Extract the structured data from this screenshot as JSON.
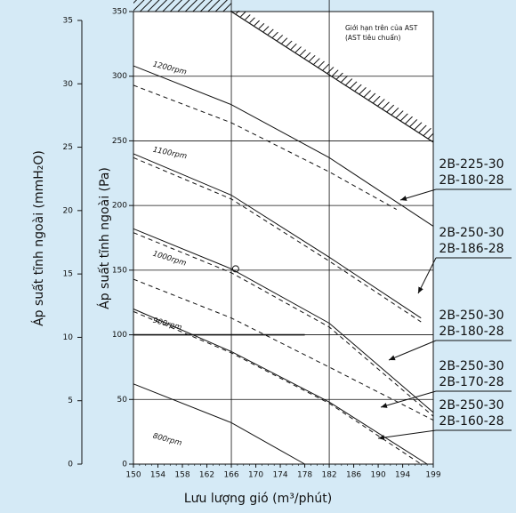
{
  "chart_data": {
    "type": "line",
    "xlabel": "Lưu lượng gió (m³/phút)",
    "ylabel": "Áp suất tĩnh ngoài (Pa)",
    "y2label": "Áp suất tĩnh ngoài (mmH₂O)",
    "xlim": [
      150,
      199
    ],
    "xticks": [
      150,
      154,
      158,
      162,
      166,
      170,
      174,
      178,
      182,
      186,
      190,
      194,
      199
    ],
    "ylim": [
      0,
      350
    ],
    "yticks": [
      0,
      50,
      100,
      150,
      200,
      250,
      300,
      350
    ],
    "y2lim": [
      0,
      35.7
    ],
    "y2ticks": [
      0,
      5,
      10,
      15,
      20,
      25,
      30,
      35
    ],
    "grid_x": [
      166,
      182
    ],
    "limit": {
      "label": [
        "Giới hạn trên của AST",
        "(AST tiêu chuẩn)"
      ],
      "x": [
        166,
        199
      ],
      "values": [
        350,
        249
      ]
    },
    "series": [
      {
        "name": "1200rpm",
        "dash": false,
        "x": [
          150,
          166,
          182,
          199
        ],
        "values": [
          308,
          278,
          237,
          184
        ]
      },
      {
        "dash": true,
        "x": [
          150,
          166,
          182,
          193
        ],
        "values": [
          293,
          264,
          226,
          197
        ]
      },
      {
        "name": "1100rpm",
        "dash": false,
        "x": [
          150,
          166,
          182,
          197
        ],
        "values": [
          240,
          208,
          160,
          113
        ]
      },
      {
        "dash": true,
        "x": [
          150,
          166,
          182,
          197
        ],
        "values": [
          237,
          205,
          157,
          110
        ]
      },
      {
        "name": "1000rpm",
        "dash": false,
        "x": [
          150,
          166,
          182,
          199
        ],
        "values": [
          182,
          151,
          109,
          40
        ]
      },
      {
        "dash": true,
        "x": [
          150,
          166,
          182,
          199
        ],
        "values": [
          179,
          148,
          106,
          37
        ]
      },
      {
        "dash": true,
        "x": [
          150,
          166,
          182,
          199
        ],
        "values": [
          143,
          113,
          75,
          34
        ]
      },
      {
        "name": "900rpm",
        "dash": false,
        "x": [
          150,
          166,
          182,
          198
        ],
        "values": [
          120,
          87,
          48,
          0
        ]
      },
      {
        "dash": true,
        "x": [
          150,
          166,
          182,
          197
        ],
        "values": [
          118,
          86,
          47,
          0
        ]
      },
      {
        "name": "800rpm",
        "dash": false,
        "x": [
          150,
          166,
          178
        ],
        "values": [
          62,
          32,
          0
        ]
      }
    ],
    "models": [
      [
        "2B-225-30",
        "2B-180-28"
      ],
      [
        "2B-250-30",
        "2B-186-28"
      ],
      [
        "2B-250-30",
        "2B-180-28"
      ],
      [
        "2B-250-30",
        "2B-170-28"
      ],
      [
        "2B-250-30",
        "2B-160-28"
      ]
    ]
  }
}
